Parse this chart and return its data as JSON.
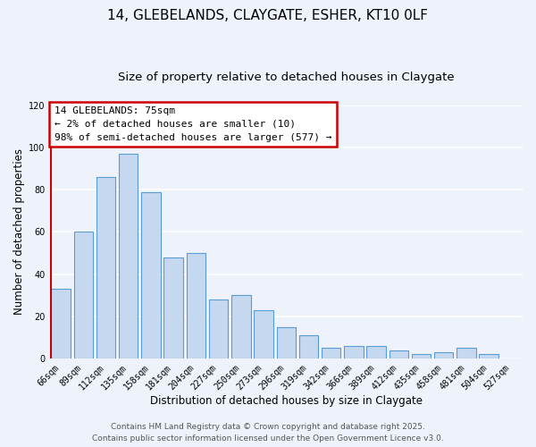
{
  "title": "14, GLEBELANDS, CLAYGATE, ESHER, KT10 0LF",
  "subtitle": "Size of property relative to detached houses in Claygate",
  "xlabel": "Distribution of detached houses by size in Claygate",
  "ylabel": "Number of detached properties",
  "categories": [
    "66sqm",
    "89sqm",
    "112sqm",
    "135sqm",
    "158sqm",
    "181sqm",
    "204sqm",
    "227sqm",
    "250sqm",
    "273sqm",
    "296sqm",
    "319sqm",
    "342sqm",
    "366sqm",
    "389sqm",
    "412sqm",
    "435sqm",
    "458sqm",
    "481sqm",
    "504sqm",
    "527sqm"
  ],
  "values": [
    33,
    60,
    86,
    97,
    79,
    48,
    50,
    28,
    30,
    23,
    15,
    11,
    5,
    6,
    6,
    4,
    2,
    3,
    5,
    2,
    0
  ],
  "bar_color": "#c5d8f0",
  "bar_edge_color": "#5b9bd5",
  "ylim": [
    0,
    120
  ],
  "yticks": [
    0,
    20,
    40,
    60,
    80,
    100,
    120
  ],
  "annotation_title": "14 GLEBELANDS: 75sqm",
  "annotation_line1": "← 2% of detached houses are smaller (10)",
  "annotation_line2": "98% of semi-detached houses are larger (577) →",
  "marker_color": "#cc0000",
  "footer1": "Contains HM Land Registry data © Crown copyright and database right 2025.",
  "footer2": "Contains public sector information licensed under the Open Government Licence v3.0.",
  "background_color": "#eef2fa",
  "plot_bg_color": "#eef2fa",
  "grid_color": "#ffffff",
  "title_fontsize": 11,
  "subtitle_fontsize": 9.5,
  "axis_label_fontsize": 8.5,
  "tick_fontsize": 7,
  "annotation_fontsize": 8,
  "footer_fontsize": 6.5
}
